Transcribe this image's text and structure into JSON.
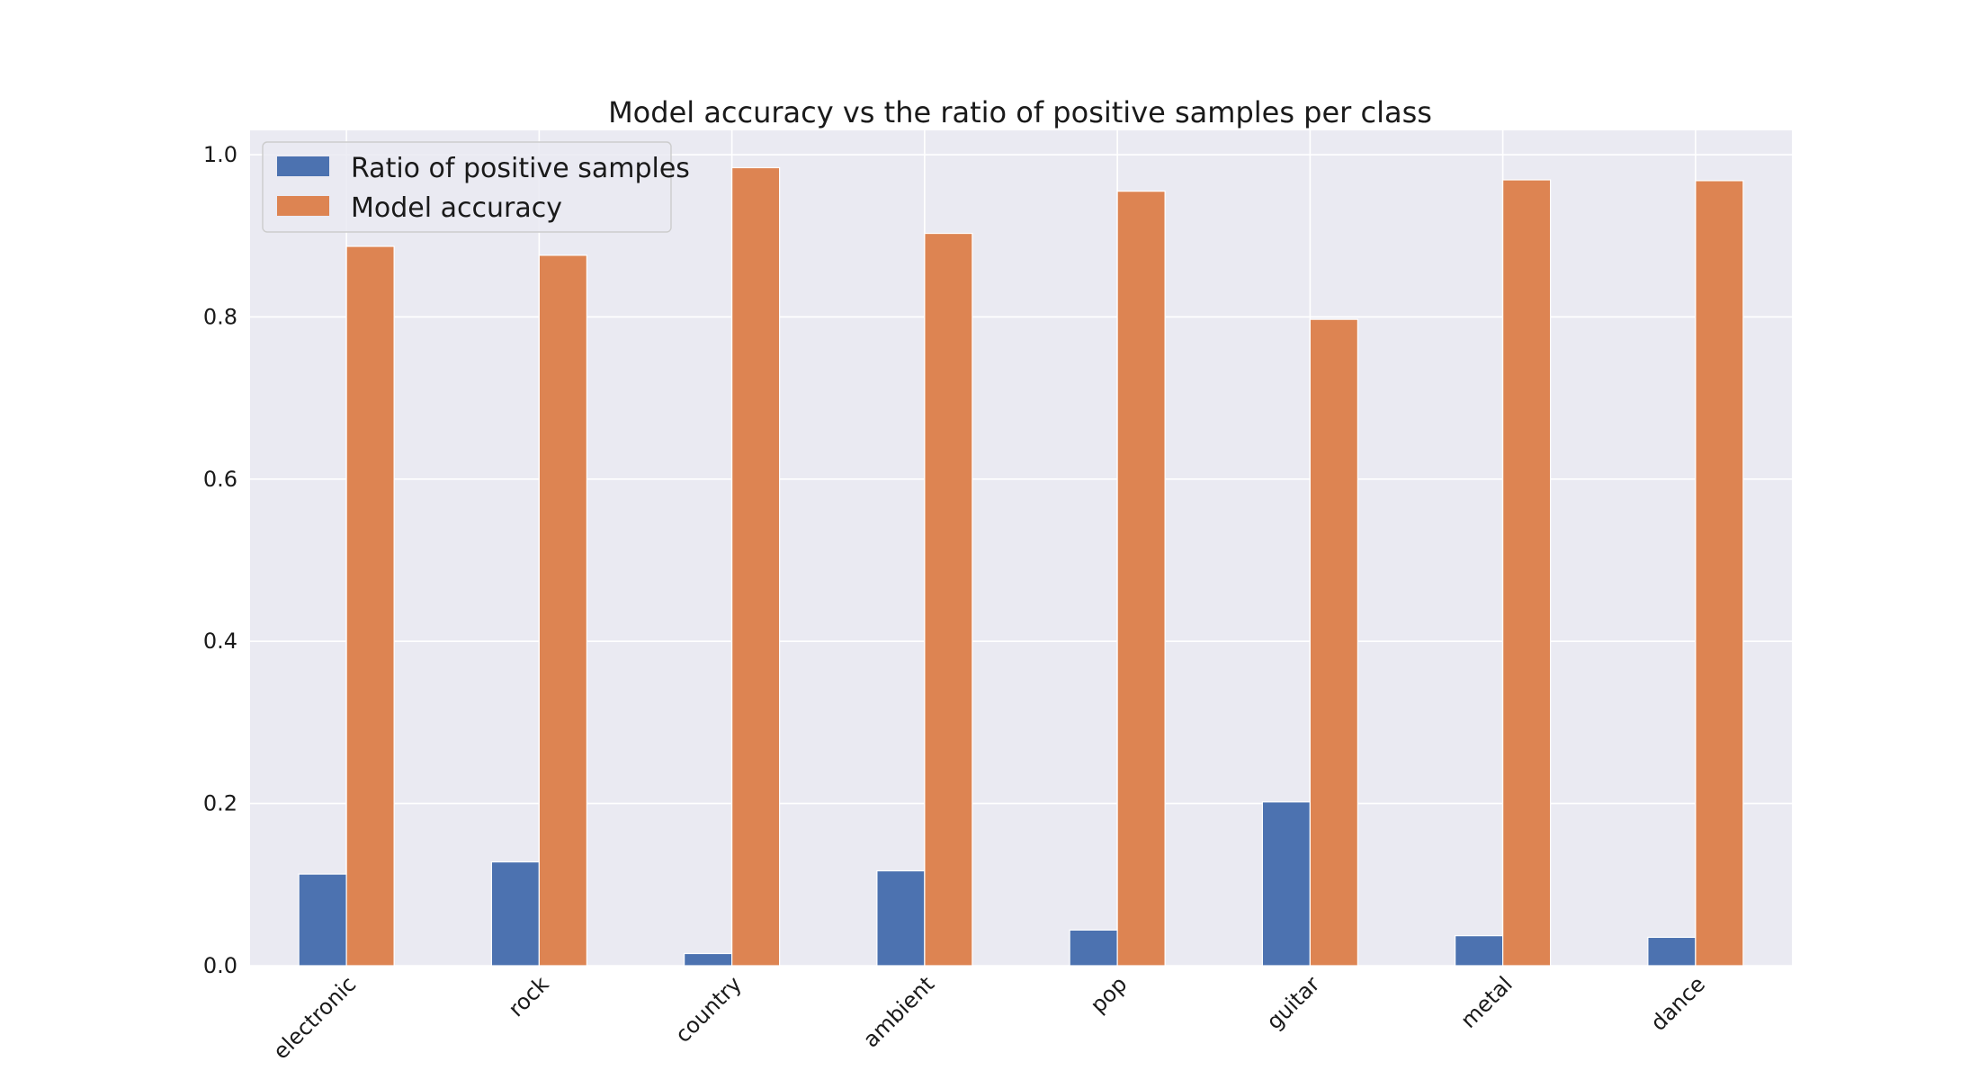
{
  "chart_data": {
    "type": "bar",
    "title": "Model accuracy vs the ratio of positive samples per class",
    "xlabel": "",
    "ylabel": "",
    "categories": [
      "electronic",
      "rock",
      "country",
      "ambient",
      "pop",
      "guitar",
      "metal",
      "dance"
    ],
    "series": [
      {
        "name": "Ratio of positive samples",
        "color": "#4c72b0",
        "values": [
          0.113,
          0.128,
          0.015,
          0.117,
          0.044,
          0.202,
          0.037,
          0.035
        ]
      },
      {
        "name": "Model accuracy",
        "color": "#dd8452",
        "values": [
          0.887,
          0.876,
          0.984,
          0.903,
          0.955,
          0.797,
          0.969,
          0.968
        ]
      }
    ],
    "ylim": [
      0,
      1.03
    ],
    "yticks": [
      {
        "value": 0.0,
        "label": "0.0"
      },
      {
        "value": 0.2,
        "label": "0.2"
      },
      {
        "value": 0.4,
        "label": "0.4"
      },
      {
        "value": 0.6,
        "label": "0.6"
      },
      {
        "value": 0.8,
        "label": "0.8"
      },
      {
        "value": 1.0,
        "label": "1.0"
      }
    ],
    "grid": true,
    "legend_position": "top-left",
    "plot_background": "#eaeaf2",
    "grid_color": "#ffffff"
  }
}
